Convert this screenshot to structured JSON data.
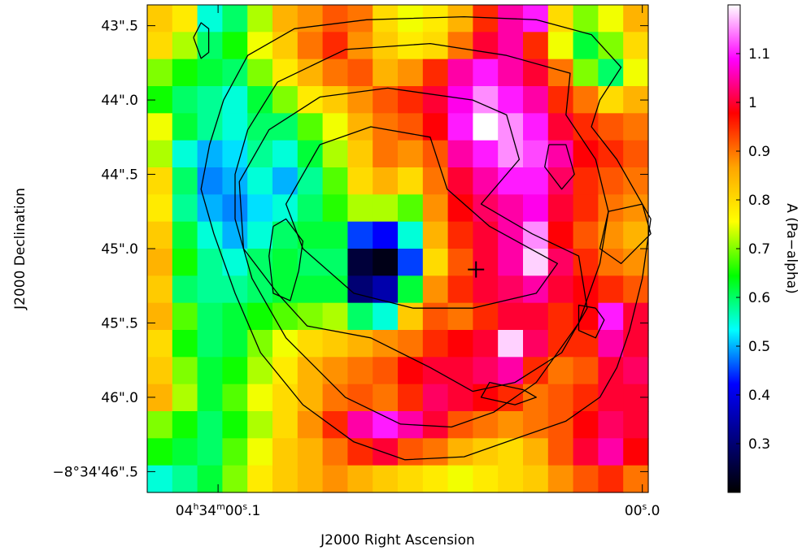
{
  "chart_data": {
    "type": "heatmap",
    "title": "",
    "xlabel": "J2000 Right Ascension",
    "ylabel": "J2000 Declination",
    "colorbar_label": "A (Pa−alpha)",
    "x_ticks": [
      {
        "h": "04",
        "m": "34",
        "s": "00",
        "frac": ".1",
        "value_s": 0.1
      },
      {
        "h": "",
        "m": "",
        "s": "00",
        "frac": ".0",
        "value_s": 0.0
      }
    ],
    "y_ticks": [
      {
        "label": "43\".5",
        "value": 43.5
      },
      {
        "label": "44\".0",
        "value": 44.0
      },
      {
        "label": "44\".5",
        "value": 44.5
      },
      {
        "label": "45\".0",
        "value": 45.0
      },
      {
        "label": "45\".5",
        "value": 45.5
      },
      {
        "label": "46\".0",
        "value": 46.0
      },
      {
        "label": "−8°34'46\".5",
        "value": 46.5
      }
    ],
    "x_range_s": [
      0.1167,
      -0.0014
    ],
    "y_range_arcsec": [
      43.36,
      46.64
    ],
    "colorbar": {
      "min": 0.2,
      "max": 1.2,
      "ticks": [
        {
          "label": "0.3",
          "value": 0.3
        },
        {
          "label": "0.4",
          "value": 0.4
        },
        {
          "label": "0.5",
          "value": 0.5
        },
        {
          "label": "0.6",
          "value": 0.6
        },
        {
          "label": "0.7",
          "value": 0.7
        },
        {
          "label": "0.8",
          "value": 0.8
        },
        {
          "label": "0.9",
          "value": 0.9
        },
        {
          "label": "1",
          "value": 1.0
        },
        {
          "label": "1.1",
          "value": 1.1
        }
      ],
      "colormap": [
        "#000000",
        "#000080",
        "#0000ff",
        "#00ffff",
        "#00ff00",
        "#ffff00",
        "#ffa500",
        "#ff0000",
        "#ff00ff",
        "#ffffff"
      ]
    },
    "grid": {
      "cols": 20,
      "rows": 18,
      "rows_top_to_bottom": [
        [
          0.82,
          0.78,
          0.55,
          0.6,
          0.72,
          0.85,
          0.88,
          0.92,
          0.9,
          0.8,
          0.75,
          0.78,
          0.85,
          0.95,
          1.05,
          1.1,
          0.8,
          0.7,
          0.75,
          0.85
        ],
        [
          0.8,
          0.72,
          0.6,
          0.65,
          0.75,
          0.82,
          0.9,
          0.95,
          0.88,
          0.82,
          0.78,
          0.8,
          0.9,
          1.0,
          1.05,
          0.95,
          0.75,
          0.62,
          0.7,
          0.8
        ],
        [
          0.7,
          0.65,
          0.62,
          0.6,
          0.7,
          0.78,
          0.85,
          0.9,
          0.92,
          0.85,
          0.88,
          0.95,
          1.05,
          1.1,
          1.05,
          1.0,
          0.9,
          0.7,
          0.6,
          0.75
        ],
        [
          0.65,
          0.6,
          0.58,
          0.55,
          0.62,
          0.7,
          0.78,
          0.82,
          0.88,
          0.92,
          0.95,
          1.0,
          1.08,
          1.15,
          1.1,
          1.05,
          0.95,
          0.9,
          0.8,
          0.85
        ],
        [
          0.75,
          0.62,
          0.58,
          0.55,
          0.6,
          0.6,
          0.68,
          0.75,
          0.85,
          0.9,
          0.92,
          0.98,
          1.1,
          1.2,
          1.15,
          1.1,
          1.0,
          0.95,
          0.92,
          0.9
        ],
        [
          0.72,
          0.55,
          0.5,
          0.52,
          0.58,
          0.55,
          0.62,
          0.72,
          0.82,
          0.9,
          0.88,
          0.92,
          1.05,
          1.1,
          1.15,
          1.12,
          1.05,
          0.98,
          0.95,
          0.92
        ],
        [
          0.8,
          0.6,
          0.48,
          0.5,
          0.55,
          0.5,
          0.58,
          0.68,
          0.8,
          0.85,
          0.8,
          0.9,
          1.0,
          1.05,
          1.1,
          1.1,
          1.02,
          0.95,
          0.92,
          0.9
        ],
        [
          0.78,
          0.58,
          0.5,
          0.48,
          0.52,
          0.55,
          0.6,
          0.66,
          0.72,
          0.72,
          0.68,
          0.88,
          0.98,
          1.02,
          1.05,
          1.08,
          1.0,
          0.95,
          0.9,
          0.88
        ],
        [
          0.82,
          0.62,
          0.55,
          0.5,
          0.55,
          0.6,
          0.62,
          0.62,
          0.45,
          0.42,
          0.55,
          0.85,
          0.95,
          1.0,
          1.05,
          1.15,
          0.98,
          0.92,
          0.88,
          0.85
        ],
        [
          0.85,
          0.65,
          0.58,
          0.55,
          0.6,
          0.62,
          0.6,
          0.6,
          0.25,
          0.22,
          0.45,
          0.8,
          0.92,
          1.0,
          1.05,
          1.18,
          1.02,
          0.95,
          0.9,
          0.88
        ],
        [
          0.82,
          0.6,
          0.58,
          0.58,
          0.6,
          0.62,
          0.62,
          0.62,
          0.3,
          0.35,
          0.62,
          0.88,
          0.95,
          1.0,
          1.02,
          1.05,
          1.0,
          0.98,
          0.95,
          0.92
        ],
        [
          0.85,
          0.68,
          0.6,
          0.62,
          0.65,
          0.68,
          0.7,
          0.72,
          0.6,
          0.55,
          0.82,
          0.92,
          0.9,
          0.95,
          1.0,
          1.0,
          0.95,
          0.98,
          1.1,
          1.0
        ],
        [
          0.8,
          0.65,
          0.6,
          0.62,
          0.7,
          0.75,
          0.8,
          0.82,
          0.85,
          0.88,
          0.9,
          0.95,
          0.98,
          1.0,
          1.18,
          1.02,
          0.95,
          0.95,
          1.05,
          1.0
        ],
        [
          0.82,
          0.7,
          0.62,
          0.65,
          0.72,
          0.78,
          0.85,
          0.88,
          0.9,
          0.92,
          0.98,
          1.0,
          1.0,
          1.02,
          1.05,
          0.95,
          0.9,
          0.92,
          1.0,
          1.02
        ],
        [
          0.85,
          0.72,
          0.62,
          0.68,
          0.75,
          0.8,
          0.85,
          0.9,
          0.92,
          0.9,
          0.95,
          1.02,
          1.0,
          0.98,
          0.95,
          0.9,
          0.92,
          0.95,
          1.0,
          1.0
        ],
        [
          0.7,
          0.65,
          0.6,
          0.65,
          0.72,
          0.8,
          0.88,
          0.95,
          1.05,
          1.1,
          1.05,
          1.0,
          0.92,
          0.9,
          0.88,
          0.9,
          0.92,
          0.98,
          1.02,
          1.0
        ],
        [
          0.65,
          0.62,
          0.6,
          0.68,
          0.75,
          0.82,
          0.85,
          0.9,
          0.95,
          1.0,
          0.92,
          0.9,
          0.85,
          0.82,
          0.8,
          0.85,
          0.92,
          1.0,
          1.05,
          0.98
        ],
        [
          0.55,
          0.58,
          0.62,
          0.7,
          0.78,
          0.82,
          0.85,
          0.88,
          0.85,
          0.82,
          0.8,
          0.78,
          0.75,
          0.78,
          0.8,
          0.82,
          0.88,
          0.92,
          0.95,
          0.9
        ]
      ]
    },
    "marker": {
      "symbol": "+",
      "ra_s": 0.0392,
      "dec_arcsec": 45.14
    },
    "contours": [
      [
        [
          0.1058,
          43.58
        ],
        [
          0.104,
          43.48
        ],
        [
          0.1022,
          43.52
        ],
        [
          0.1022,
          43.68
        ],
        [
          0.104,
          43.72
        ],
        [
          0.1058,
          43.58
        ]
      ],
      [
        [
          0.0987,
          44.0
        ],
        [
          0.093,
          43.7
        ],
        [
          0.082,
          43.52
        ],
        [
          0.065,
          43.46
        ],
        [
          0.042,
          43.44
        ],
        [
          0.025,
          43.46
        ],
        [
          0.012,
          43.56
        ],
        [
          0.005,
          43.78
        ],
        [
          0.01,
          44.0
        ],
        [
          0.012,
          44.18
        ],
        [
          0.006,
          44.4
        ],
        [
          -0.002,
          44.8
        ],
        [
          0.0,
          45.2
        ],
        [
          0.003,
          45.55
        ],
        [
          0.006,
          45.8
        ],
        [
          0.01,
          46.0
        ],
        [
          0.018,
          46.16
        ],
        [
          0.03,
          46.28
        ],
        [
          0.042,
          46.4
        ],
        [
          0.056,
          46.42
        ],
        [
          0.068,
          46.3
        ],
        [
          0.08,
          46.05
        ],
        [
          0.09,
          45.7
        ],
        [
          0.096,
          45.3
        ],
        [
          0.101,
          44.9
        ],
        [
          0.104,
          44.6
        ],
        [
          0.102,
          44.3
        ],
        [
          0.0987,
          44.0
        ]
      ],
      [
        [
          0.093,
          44.2
        ],
        [
          0.086,
          43.88
        ],
        [
          0.07,
          43.66
        ],
        [
          0.05,
          43.62
        ],
        [
          0.032,
          43.7
        ],
        [
          0.017,
          43.82
        ],
        [
          0.018,
          44.1
        ],
        [
          0.011,
          44.4
        ],
        [
          0.008,
          44.75
        ],
        [
          0.01,
          45.1
        ],
        [
          0.015,
          45.5
        ],
        [
          0.025,
          45.9
        ],
        [
          0.035,
          46.1
        ],
        [
          0.045,
          46.2
        ],
        [
          0.057,
          46.18
        ],
        [
          0.07,
          46.0
        ],
        [
          0.084,
          45.6
        ],
        [
          0.092,
          45.2
        ],
        [
          0.096,
          44.8
        ],
        [
          0.096,
          44.5
        ],
        [
          0.093,
          44.2
        ]
      ],
      [
        [
          0.05,
          45.8
        ],
        [
          0.064,
          45.6
        ],
        [
          0.079,
          45.52
        ],
        [
          0.086,
          45.3
        ],
        [
          0.094,
          45.0
        ],
        [
          0.095,
          44.55
        ],
        [
          0.088,
          44.2
        ],
        [
          0.076,
          43.98
        ],
        [
          0.06,
          43.92
        ],
        [
          0.04,
          44.0
        ],
        [
          0.032,
          44.1
        ],
        [
          0.029,
          44.4
        ],
        [
          0.038,
          44.7
        ],
        [
          0.026,
          44.9
        ],
        [
          0.015,
          45.05
        ],
        [
          0.013,
          45.4
        ],
        [
          0.019,
          45.7
        ],
        [
          0.03,
          45.9
        ],
        [
          0.04,
          45.96
        ],
        [
          0.05,
          45.8
        ]
      ],
      [
        [
          0.076,
          44.3
        ],
        [
          0.064,
          44.18
        ],
        [
          0.05,
          44.25
        ],
        [
          0.046,
          44.6
        ],
        [
          0.036,
          44.85
        ],
        [
          0.02,
          45.1
        ],
        [
          0.025,
          45.3
        ],
        [
          0.04,
          45.4
        ],
        [
          0.054,
          45.4
        ],
        [
          0.068,
          45.3
        ],
        [
          0.08,
          45.0
        ],
        [
          0.084,
          44.7
        ],
        [
          0.076,
          44.3
        ]
      ],
      [
        [
          0.087,
          44.85
        ],
        [
          0.084,
          44.8
        ],
        [
          0.08,
          44.95
        ],
        [
          0.081,
          45.15
        ],
        [
          0.083,
          45.35
        ],
        [
          0.087,
          45.3
        ],
        [
          0.088,
          45.05
        ],
        [
          0.087,
          44.85
        ]
      ],
      [
        [
          0.022,
          44.3
        ],
        [
          0.018,
          44.3
        ],
        [
          0.016,
          44.5
        ],
        [
          0.019,
          44.6
        ],
        [
          0.023,
          44.45
        ],
        [
          0.022,
          44.3
        ]
      ],
      [
        [
          0.0,
          44.7
        ],
        [
          0.008,
          44.75
        ],
        [
          0.01,
          45.0
        ],
        [
          0.005,
          45.1
        ],
        [
          -0.002,
          44.9
        ],
        [
          0.0,
          44.7
        ]
      ],
      [
        [
          0.011,
          45.4
        ],
        [
          0.015,
          45.38
        ],
        [
          0.015,
          45.55
        ],
        [
          0.011,
          45.6
        ],
        [
          0.009,
          45.48
        ],
        [
          0.011,
          45.4
        ]
      ],
      [
        [
          0.028,
          45.95
        ],
        [
          0.036,
          45.9
        ],
        [
          0.038,
          46.0
        ],
        [
          0.03,
          46.05
        ],
        [
          0.025,
          46.0
        ],
        [
          0.028,
          45.95
        ]
      ]
    ]
  }
}
